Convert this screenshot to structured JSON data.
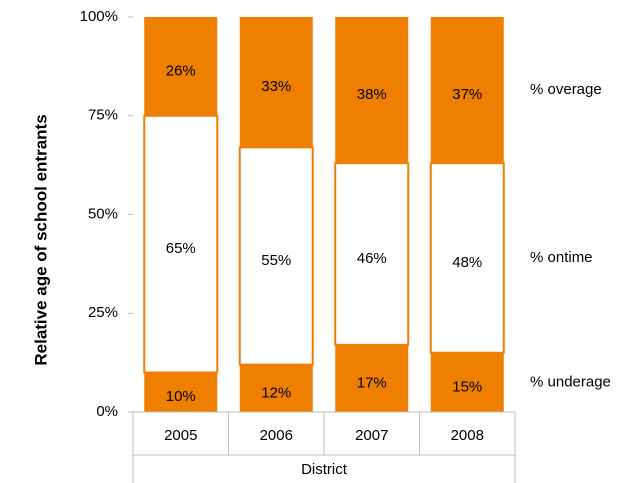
{
  "chart_data": {
    "type": "stacked_bar",
    "y_label": "Relative age of school entrants",
    "x_label": "District",
    "categories": [
      "2005",
      "2006",
      "2007",
      "2008"
    ],
    "series": [
      {
        "name": "% underage",
        "color": "#ee7f00",
        "values": [
          10,
          12,
          17,
          15
        ],
        "value_labels": [
          "10%",
          "12%",
          "17%",
          "15%"
        ]
      },
      {
        "name": "% ontime",
        "color": "#ffffff",
        "values": [
          65,
          55,
          46,
          48
        ],
        "value_labels": [
          "65%",
          "55%",
          "46%",
          "48%"
        ]
      },
      {
        "name": "% overage",
        "color": "#ee7f00",
        "values": [
          26,
          33,
          38,
          37
        ],
        "value_labels": [
          "26%",
          "33%",
          "38%",
          "37%"
        ]
      }
    ],
    "ylim": [
      0,
      100
    ],
    "yticks": [
      {
        "value": 0,
        "label": "0%"
      },
      {
        "value": 25,
        "label": "25%"
      },
      {
        "value": 50,
        "label": "50%"
      },
      {
        "value": 75,
        "label": "75%"
      },
      {
        "value": 100,
        "label": "100%"
      }
    ]
  }
}
